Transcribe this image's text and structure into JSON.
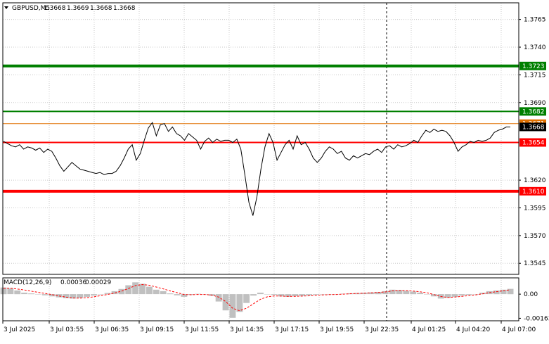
{
  "chart_data": [
    {
      "type": "line",
      "symbol": "GBPUSD,M5",
      "ohlc": [
        "1.3668",
        "1.3669",
        "1.3668",
        "1.3668"
      ],
      "ylim": [
        1.3535,
        1.378
      ],
      "y_ticks": [
        "1.3765",
        "1.3740",
        "1.3715",
        "1.3690",
        "1.3620",
        "1.3595",
        "1.3570",
        "1.3545"
      ],
      "x_ticks": [
        "3 Jul 2025",
        "3 Jul 03:55",
        "3 Jul 06:35",
        "3 Jul 09:15",
        "3 Jul 11:55",
        "3 Jul 14:35",
        "3 Jul 17:15",
        "3 Jul 19:55",
        "3 Jul 22:35",
        "4 Jul 01:25",
        "4 Jul 04:20",
        "4 Jul 07:00"
      ],
      "levels": [
        {
          "value": 1.3723,
          "label": "1.3723",
          "color": "#008000",
          "width": 4
        },
        {
          "value": 1.3682,
          "label": "1.3682",
          "color": "#008000",
          "width": 2
        },
        {
          "value": 1.3671,
          "label": "1.3671",
          "color": "#e07000",
          "width": 1
        },
        {
          "value": 1.3654,
          "label": "1.3654",
          "color": "#ff0000",
          "width": 2
        },
        {
          "value": 1.361,
          "label": "1.3610",
          "color": "#ff0000",
          "width": 4
        }
      ],
      "current_price": {
        "value": 1.3668,
        "label": "1.3668"
      },
      "series": [
        {
          "values": [
            1.3655,
            1.3653,
            1.3651,
            1.365,
            1.3652,
            1.3648,
            1.365,
            1.3649,
            1.3647,
            1.3649,
            1.3645,
            1.3648,
            1.3646,
            1.364,
            1.3633,
            1.3628,
            1.3632,
            1.3636,
            1.3633,
            1.363,
            1.3629,
            1.3628,
            1.3627,
            1.3626,
            1.3627,
            1.3625,
            1.3626,
            1.3626,
            1.3628,
            1.3633,
            1.364,
            1.3648,
            1.3652,
            1.3638,
            1.3644,
            1.3656,
            1.3667,
            1.3672,
            1.366,
            1.367,
            1.3671,
            1.3664,
            1.3668,
            1.3662,
            1.366,
            1.3656,
            1.3662,
            1.3659,
            1.3656,
            1.3648,
            1.3655,
            1.3658,
            1.3654,
            1.3657,
            1.3655,
            1.3656,
            1.3656,
            1.3654,
            1.3657,
            1.3648,
            1.3625,
            1.36,
            1.3588,
            1.3605,
            1.363,
            1.365,
            1.3662,
            1.3654,
            1.3638,
            1.3645,
            1.3652,
            1.3656,
            1.3648,
            1.366,
            1.3652,
            1.3654,
            1.3648,
            1.364,
            1.3636,
            1.364,
            1.3646,
            1.365,
            1.3648,
            1.3644,
            1.3646,
            1.364,
            1.3638,
            1.3642,
            1.364,
            1.3642,
            1.3644,
            1.3643,
            1.3646,
            1.3648,
            1.3645,
            1.365,
            1.3651,
            1.3648,
            1.3652,
            1.365,
            1.3651,
            1.3653,
            1.3656,
            1.3654,
            1.366,
            1.3665,
            1.3663,
            1.3666,
            1.3664,
            1.3665,
            1.3664,
            1.366,
            1.3654,
            1.3646,
            1.365,
            1.3652,
            1.3655,
            1.3654,
            1.3656,
            1.3655,
            1.3656,
            1.3658,
            1.3663,
            1.3665,
            1.3666,
            1.3668,
            1.3668
          ]
        }
      ]
    },
    {
      "type": "bar",
      "indicator": "MACD(12,26,9)",
      "macd_value": "0.00036",
      "signal_value": "0.00029",
      "ylim": [
        -0.0018,
        0.0011
      ],
      "y_ticks": [
        "0.00",
        "-0.00163"
      ],
      "series": [
        {
          "kind": "histogram",
          "color": "#c0c0c0",
          "values": [
            0.00045,
            0.0004,
            0.00025,
            0.0001,
            5e-05,
            0.0,
            -8e-05,
            -0.00015,
            -0.00022,
            -0.00028,
            -0.0003,
            -0.00026,
            -0.00018,
            -0.0001,
            -2e-05,
            8e-05,
            0.0002,
            0.00035,
            0.0006,
            0.0008,
            0.0007,
            0.0005,
            0.0003,
            0.0002,
            5e-05,
            -8e-05,
            -0.00018,
            -5e-05,
            2e-05,
            0.0,
            -0.00012,
            -0.0005,
            -0.0011,
            -0.0016,
            -0.0012,
            -0.0006,
            -0.0001,
            0.0001,
            0.0,
            -5e-05,
            -0.00015,
            -0.00018,
            -0.00014,
            -0.00012,
            -8e-05,
            -4e-05,
            -2e-05,
            0.0,
            -2e-05,
            3e-05,
            6e-05,
            8e-05,
            0.0001,
            0.00012,
            0.00015,
            0.0002,
            0.0003,
            0.00028,
            0.00022,
            0.00018,
            0.0001,
            0.0,
            -0.00015,
            -0.0003,
            -0.00025,
            -0.00018,
            -0.0001,
            -5e-05,
            0.0,
            0.0001,
            0.0002,
            0.00025,
            0.0003,
            0.00036
          ]
        },
        {
          "kind": "signal",
          "color": "#ff0000",
          "values": [
            0.0004,
            0.0004,
            0.00035,
            0.00028,
            0.0002,
            0.00012,
            5e-05,
            -3e-05,
            -0.00012,
            -0.0002,
            -0.00026,
            -0.00027,
            -0.00024,
            -0.00018,
            -0.0001,
            -2e-05,
            8e-05,
            0.0002,
            0.00038,
            0.00058,
            0.00065,
            0.0006,
            0.00048,
            0.00036,
            0.00022,
            0.0001,
            -2e-05,
            -4e-05,
            -2e-05,
            -2e-05,
            -6e-05,
            -0.0002,
            -0.0005,
            -0.00095,
            -0.00112,
            -0.00095,
            -0.00065,
            -0.00035,
            -0.00018,
            -0.00012,
            -0.00013,
            -0.00015,
            -0.00015,
            -0.00013,
            -0.00011,
            -8e-05,
            -5e-05,
            -3e-05,
            -2e-05,
            0.0,
            3e-05,
            5e-05,
            7e-05,
            9e-05,
            0.00012,
            0.00015,
            0.00022,
            0.00025,
            0.00024,
            0.00021,
            0.00016,
            9e-05,
            -3e-05,
            -0.00016,
            -0.00022,
            -0.0002,
            -0.00015,
            -0.0001,
            -5e-05,
            2e-05,
            0.0001,
            0.00017,
            0.00023,
            0.00029
          ]
        }
      ]
    }
  ]
}
